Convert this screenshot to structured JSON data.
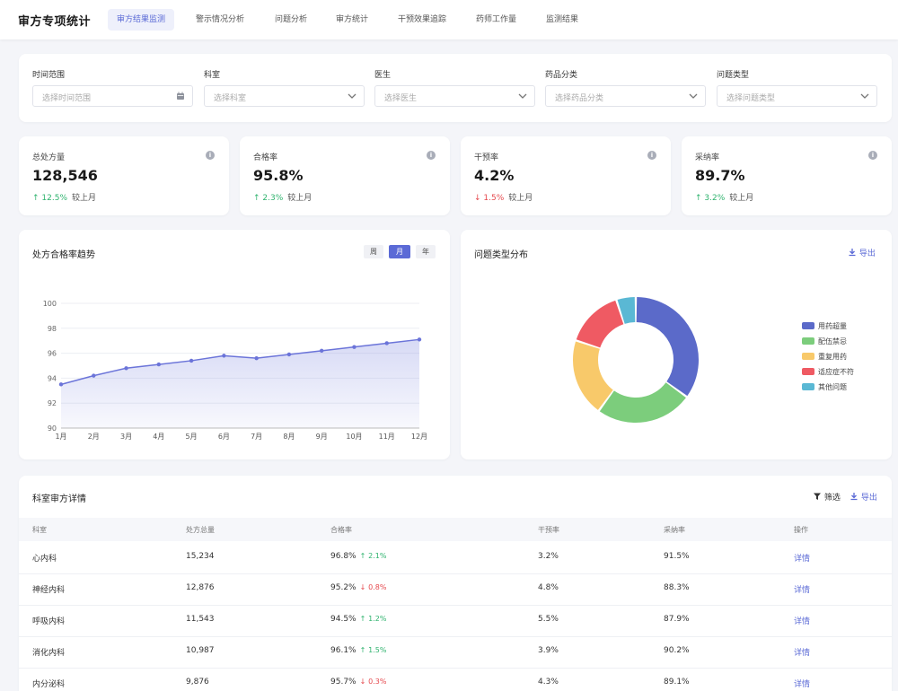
{
  "header": {
    "title": "审方专项统计",
    "tabs": [
      "审方结果监测",
      "警示情况分析",
      "问题分析",
      "审方统计",
      "干预效果追踪",
      "药师工作量",
      "监测结果"
    ],
    "active_tab": 0
  },
  "filters": [
    {
      "label": "时间范围",
      "placeholder": "选择时间范围",
      "icon": "calendar-icon"
    },
    {
      "label": "科室",
      "placeholder": "选择科室",
      "icon": "chevron-down-icon"
    },
    {
      "label": "医生",
      "placeholder": "选择医生",
      "icon": "chevron-down-icon"
    },
    {
      "label": "药品分类",
      "placeholder": "选择药品分类",
      "icon": "chevron-down-icon"
    },
    {
      "label": "问题类型",
      "placeholder": "选择问题类型",
      "icon": "chevron-down-icon"
    }
  ],
  "kpis": [
    {
      "label": "总处方量",
      "value": "128,546",
      "direction": "up",
      "change": "12.5%",
      "compare": "较上月"
    },
    {
      "label": "合格率",
      "value": "95.8%",
      "direction": "up",
      "change": "2.3%",
      "compare": "较上月"
    },
    {
      "label": "干预率",
      "value": "4.2%",
      "direction": "down",
      "change": "1.5%",
      "compare": "较上月"
    },
    {
      "label": "采纳率",
      "value": "89.7%",
      "direction": "up",
      "change": "3.2%",
      "compare": "较上月"
    }
  ],
  "trend_panel": {
    "title": "处方合格率趋势",
    "segments": [
      "周",
      "月",
      "年"
    ],
    "active_segment": 1
  },
  "distribution_panel": {
    "title": "问题类型分布",
    "export_label": "导出"
  },
  "table_panel": {
    "title": "科室审方详情",
    "filter_label": "筛选",
    "export_label": "导出",
    "columns": [
      "科室",
      "处方总量",
      "合格率",
      "干预率",
      "采纳率",
      "操作"
    ],
    "rows": [
      {
        "dept": "心内科",
        "total": "15,234",
        "pass": "96.8%",
        "dir": "up",
        "chg": "2.1%",
        "intervene": "3.2%",
        "adopt": "91.5%",
        "action": "详情"
      },
      {
        "dept": "神经内科",
        "total": "12,876",
        "pass": "95.2%",
        "dir": "down",
        "chg": "0.8%",
        "intervene": "4.8%",
        "adopt": "88.3%",
        "action": "详情"
      },
      {
        "dept": "呼吸内科",
        "total": "11,543",
        "pass": "94.5%",
        "dir": "up",
        "chg": "1.2%",
        "intervene": "5.5%",
        "adopt": "87.9%",
        "action": "详情"
      },
      {
        "dept": "消化内科",
        "total": "10,987",
        "pass": "96.1%",
        "dir": "up",
        "chg": "1.5%",
        "intervene": "3.9%",
        "adopt": "90.2%",
        "action": "详情"
      },
      {
        "dept": "内分泌科",
        "total": "9,876",
        "pass": "95.7%",
        "dir": "down",
        "chg": "0.3%",
        "intervene": "4.3%",
        "adopt": "89.1%",
        "action": "详情"
      }
    ]
  },
  "colors": {
    "accent": "#5b6ad6",
    "up": "#2fb36e",
    "down": "#e5484d"
  },
  "chart_data": [
    {
      "type": "area",
      "title": "处方合格率趋势",
      "x": [
        "1月",
        "2月",
        "3月",
        "4月",
        "5月",
        "6月",
        "7月",
        "8月",
        "9月",
        "10月",
        "11月",
        "12月"
      ],
      "values": [
        93.5,
        94.2,
        94.8,
        95.1,
        95.4,
        95.8,
        95.6,
        95.9,
        96.2,
        96.5,
        96.8,
        97.1
      ],
      "ylim": [
        90,
        100
      ],
      "yticks": [
        90,
        92,
        94,
        96,
        98,
        100
      ],
      "grid": true,
      "color": "#6b74d9"
    },
    {
      "type": "pie",
      "title": "问题类型分布",
      "categories": [
        "用药超量",
        "配伍禁忌",
        "重复用药",
        "适应症不符",
        "其他问题"
      ],
      "values": [
        35,
        25,
        20,
        15,
        5
      ],
      "colors": [
        "#5b6ac9",
        "#7ccd7c",
        "#f8c96a",
        "#ef5a63",
        "#5ab8d4"
      ],
      "legend": "right"
    }
  ]
}
